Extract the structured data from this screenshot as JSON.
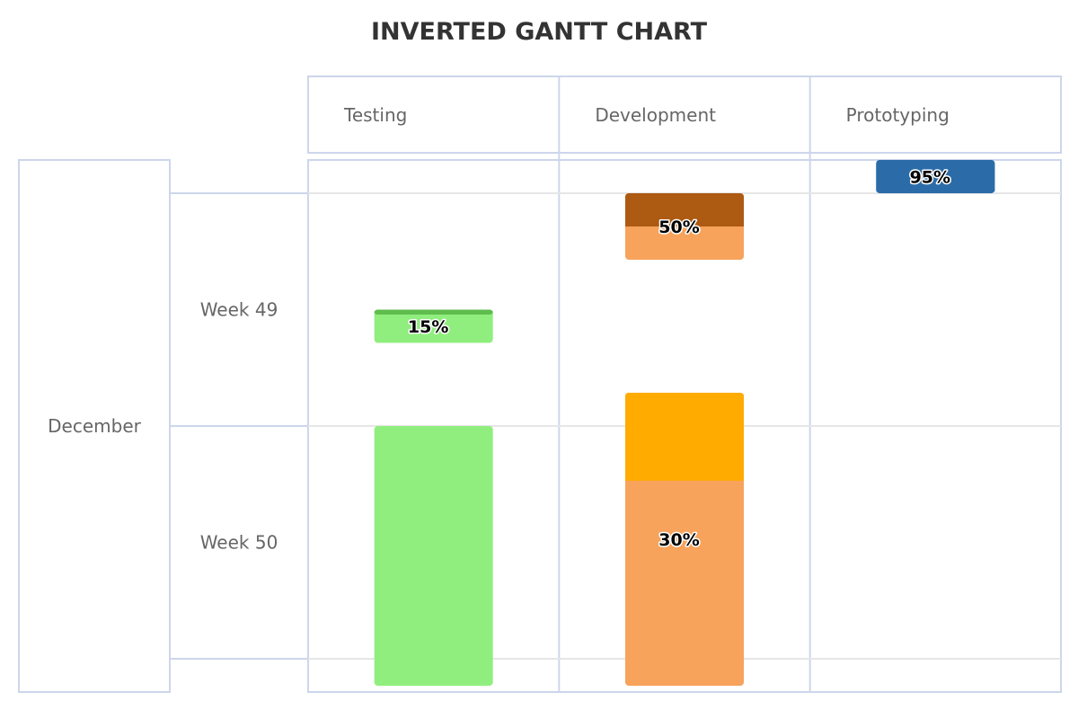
{
  "chart_data": {
    "type": "bar",
    "title": "INVERTED GANTT CHART",
    "columns": [
      "Testing",
      "Development",
      "Prototyping"
    ],
    "month": "December",
    "weeks": [
      "Week 49",
      "Week 50"
    ],
    "date_range": [
      "2014-11-30",
      "2014-12-15"
    ],
    "week_ranges": [
      [
        "2014-12-01",
        "2014-12-08"
      ],
      [
        "2014-12-08",
        "2014-12-15"
      ]
    ],
    "tasks": [
      {
        "column": "Testing",
        "start": "2014-12-04 12:00",
        "end": "2014-12-05 12:00",
        "completed": 0.15,
        "label": "15%",
        "color": "#90ee7e",
        "completed_color": "#5fbd4e"
      },
      {
        "column": "Testing",
        "start": "2014-12-08",
        "end": "2014-12-21",
        "completed": null,
        "label": "",
        "color": "#90ee7e",
        "completed_color": "#5fbd4e"
      },
      {
        "column": "Development",
        "start": "2014-12-01",
        "end": "2014-12-03",
        "completed": 0.5,
        "label": "50%",
        "color": "#f7a35c",
        "completed_color": "#ad5a12"
      },
      {
        "column": "Development",
        "start": "2014-12-07",
        "end": "2014-12-17",
        "completed": 0.3,
        "label": "30%",
        "color": "#f7a35c",
        "completed_color": "#ffab00"
      },
      {
        "column": "Prototyping",
        "start": "2014-11-30",
        "end": "2014-12-01",
        "completed": 0.95,
        "label": "95%",
        "color": "#2b6ca8",
        "completed_color": "#2b6ca8"
      }
    ],
    "grid": true,
    "legend": "none"
  }
}
